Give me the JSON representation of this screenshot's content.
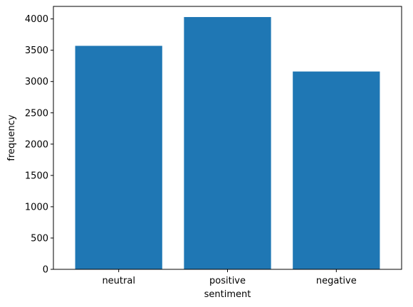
{
  "chart_data": {
    "type": "bar",
    "categories": [
      "neutral",
      "positive",
      "negative"
    ],
    "values": [
      3570,
      4030,
      3160
    ],
    "xlabel": "sentiment",
    "ylabel": "frequency",
    "ylim": [
      0,
      4200
    ],
    "yticks": [
      0,
      500,
      1000,
      1500,
      2000,
      2500,
      3000,
      3500,
      4000
    ],
    "bar_color": "#1f77b4",
    "grid": false,
    "legend": false
  }
}
